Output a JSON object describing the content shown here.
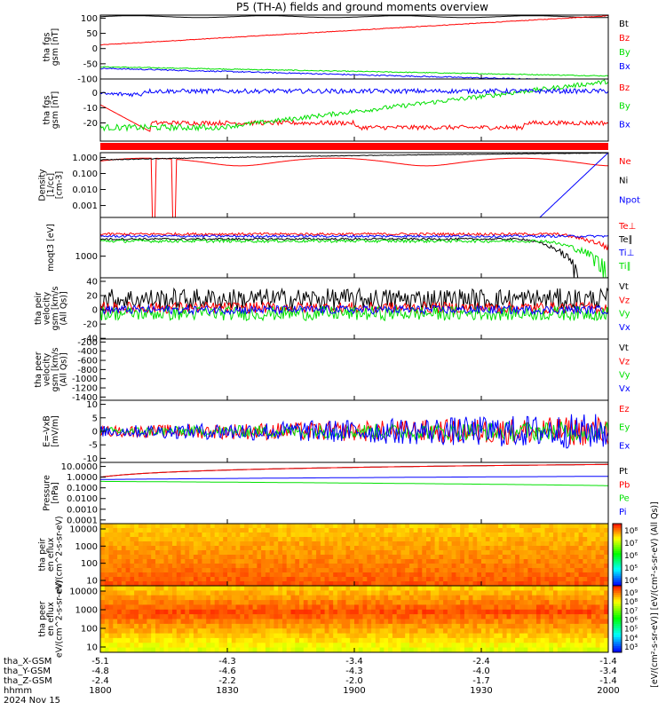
{
  "title": "P5 (TH-A) fields and ground moments overview",
  "colors": {
    "black": "#000000",
    "red": "#ff0000",
    "green": "#00e000",
    "blue": "#0000ff"
  },
  "chart_data": [
    {
      "type": "line",
      "ylabel": "tha fgs gsm [nT]",
      "yticks": [
        "100",
        "50",
        "0",
        "-50",
        "-100"
      ],
      "ylim": [
        -100,
        110
      ],
      "ylog": false,
      "legend": [
        {
          "name": "Bt",
          "color": "black"
        },
        {
          "name": "Bz",
          "color": "red"
        },
        {
          "name": "By",
          "color": "green"
        },
        {
          "name": "Bx",
          "color": "blue"
        }
      ]
    },
    {
      "type": "line",
      "ylabel": "tha fgs gsm [nT]",
      "yticks": [
        "0",
        "-10",
        "-20"
      ],
      "ylim": [
        -32,
        9
      ],
      "ylog": false,
      "legend": [
        {
          "name": "Bz",
          "color": "red"
        },
        {
          "name": "By",
          "color": "green"
        },
        {
          "name": "Bx",
          "color": "blue"
        }
      ]
    },
    {
      "type": "line",
      "ylabel": "Density [1/cc] [cm-3]",
      "yticks": [
        "1.000",
        "0.100",
        "0.010",
        "0.001"
      ],
      "ylim": [
        0.00018,
        2.0
      ],
      "ylog": true,
      "legend": [
        {
          "name": "Ne",
          "color": "red"
        },
        {
          "name": "Ni",
          "color": "black"
        },
        {
          "name": "Npot",
          "color": "blue"
        }
      ]
    },
    {
      "type": "line",
      "ylabel": "moqt3 [eV]",
      "yticks": [
        "1000"
      ],
      "ylim": [
        150,
        30000
      ],
      "ylog": true,
      "legend": [
        {
          "name": "Te⊥",
          "color": "red"
        },
        {
          "name": "Te∥",
          "color": "black"
        },
        {
          "name": "Ti⊥",
          "color": "blue"
        },
        {
          "name": "Ti∥",
          "color": "green"
        }
      ]
    },
    {
      "type": "line",
      "ylabel": "tha peir velocity gsm [km/s (All Qs)]",
      "yticks": [
        "40",
        "20",
        "0",
        "-20",
        "-40"
      ],
      "ylim": [
        -41,
        45
      ],
      "ylog": false,
      "legend": [
        {
          "name": "Vt",
          "color": "black"
        },
        {
          "name": "Vz",
          "color": "red"
        },
        {
          "name": "Vy",
          "color": "green"
        },
        {
          "name": "Vx",
          "color": "blue"
        }
      ]
    },
    {
      "type": "line",
      "ylabel": "tha peer velocity gsm [km/s (All Qs)]",
      "yticks": [
        "-200",
        "-400",
        "-600",
        "-800",
        "-1000",
        "-1200",
        "-1400"
      ],
      "ylim": [
        -1470,
        -135
      ],
      "ylog": false,
      "legend": [
        {
          "name": "Vt",
          "color": "black"
        },
        {
          "name": "Vz",
          "color": "red"
        },
        {
          "name": "Vy",
          "color": "green"
        },
        {
          "name": "Vx",
          "color": "blue"
        }
      ]
    },
    {
      "type": "line",
      "ylabel": "E=-VxB [mV/m]",
      "yticks": [
        "10",
        "5",
        "0",
        "-5",
        "-10"
      ],
      "ylim": [
        -11.5,
        11.5
      ],
      "ylog": false,
      "legend": [
        {
          "name": "Ez",
          "color": "red"
        },
        {
          "name": "Ey",
          "color": "green"
        },
        {
          "name": "Ex",
          "color": "blue"
        }
      ]
    },
    {
      "type": "line",
      "ylabel": "Pressure [nPa]",
      "yticks": [
        "10.0000",
        "1.0000",
        "0.1000",
        "0.0100",
        "0.0010",
        "0.0001"
      ],
      "ylim": [
        4.5e-05,
        24
      ],
      "ylog": true,
      "legend": [
        {
          "name": "Pt",
          "color": "black"
        },
        {
          "name": "Pb",
          "color": "red"
        },
        {
          "name": "Pe",
          "color": "green"
        },
        {
          "name": "Pi",
          "color": "blue"
        }
      ]
    },
    {
      "type": "heatmap",
      "ylabel": "tha peir en eflux eV/(cm^2-s-sr-eV)",
      "yticks": [
        "10000",
        "1000",
        "100",
        "10"
      ],
      "colorbar_ticks": [
        "10⁸",
        "10⁷",
        "10⁶",
        "10⁵",
        "10⁴"
      ]
    },
    {
      "type": "heatmap",
      "ylabel": "tha peer en eflux eV/(cm^2-s-sr-eV)",
      "yticks": [
        "10000",
        "1000",
        "100",
        "10"
      ],
      "colorbar_ticks": [
        "10⁹",
        "10⁸",
        "10⁷",
        "10⁶",
        "10⁵",
        "10⁴",
        "10³"
      ]
    }
  ],
  "colorbar_label": "[eV/(cm²-s-sr-eV)] [eV/(cm²-s-sr-eV) (All Qs)]",
  "x_axis": {
    "row_labels": [
      "tha_X-GSM",
      "tha_Y-GSM",
      "tha_Z-GSM",
      "hhmm",
      "2024 Nov 15"
    ],
    "tick_minutes": [
      0,
      30,
      60,
      90,
      120
    ],
    "ticks": [
      {
        "x": "-5.1",
        "y": "-4.8",
        "z": "-2.4",
        "hhmm": "1800"
      },
      {
        "x": "-4.3",
        "y": "-4.6",
        "z": "-2.2",
        "hhmm": "1830"
      },
      {
        "x": "-3.4",
        "y": "-4.3",
        "z": "-2.0",
        "hhmm": "1900"
      },
      {
        "x": "-2.4",
        "y": "-4.0",
        "z": "-1.7",
        "hhmm": "1930"
      },
      {
        "x": "-1.4",
        "y": "-3.4",
        "z": "-1.4",
        "hhmm": "2000"
      }
    ]
  }
}
